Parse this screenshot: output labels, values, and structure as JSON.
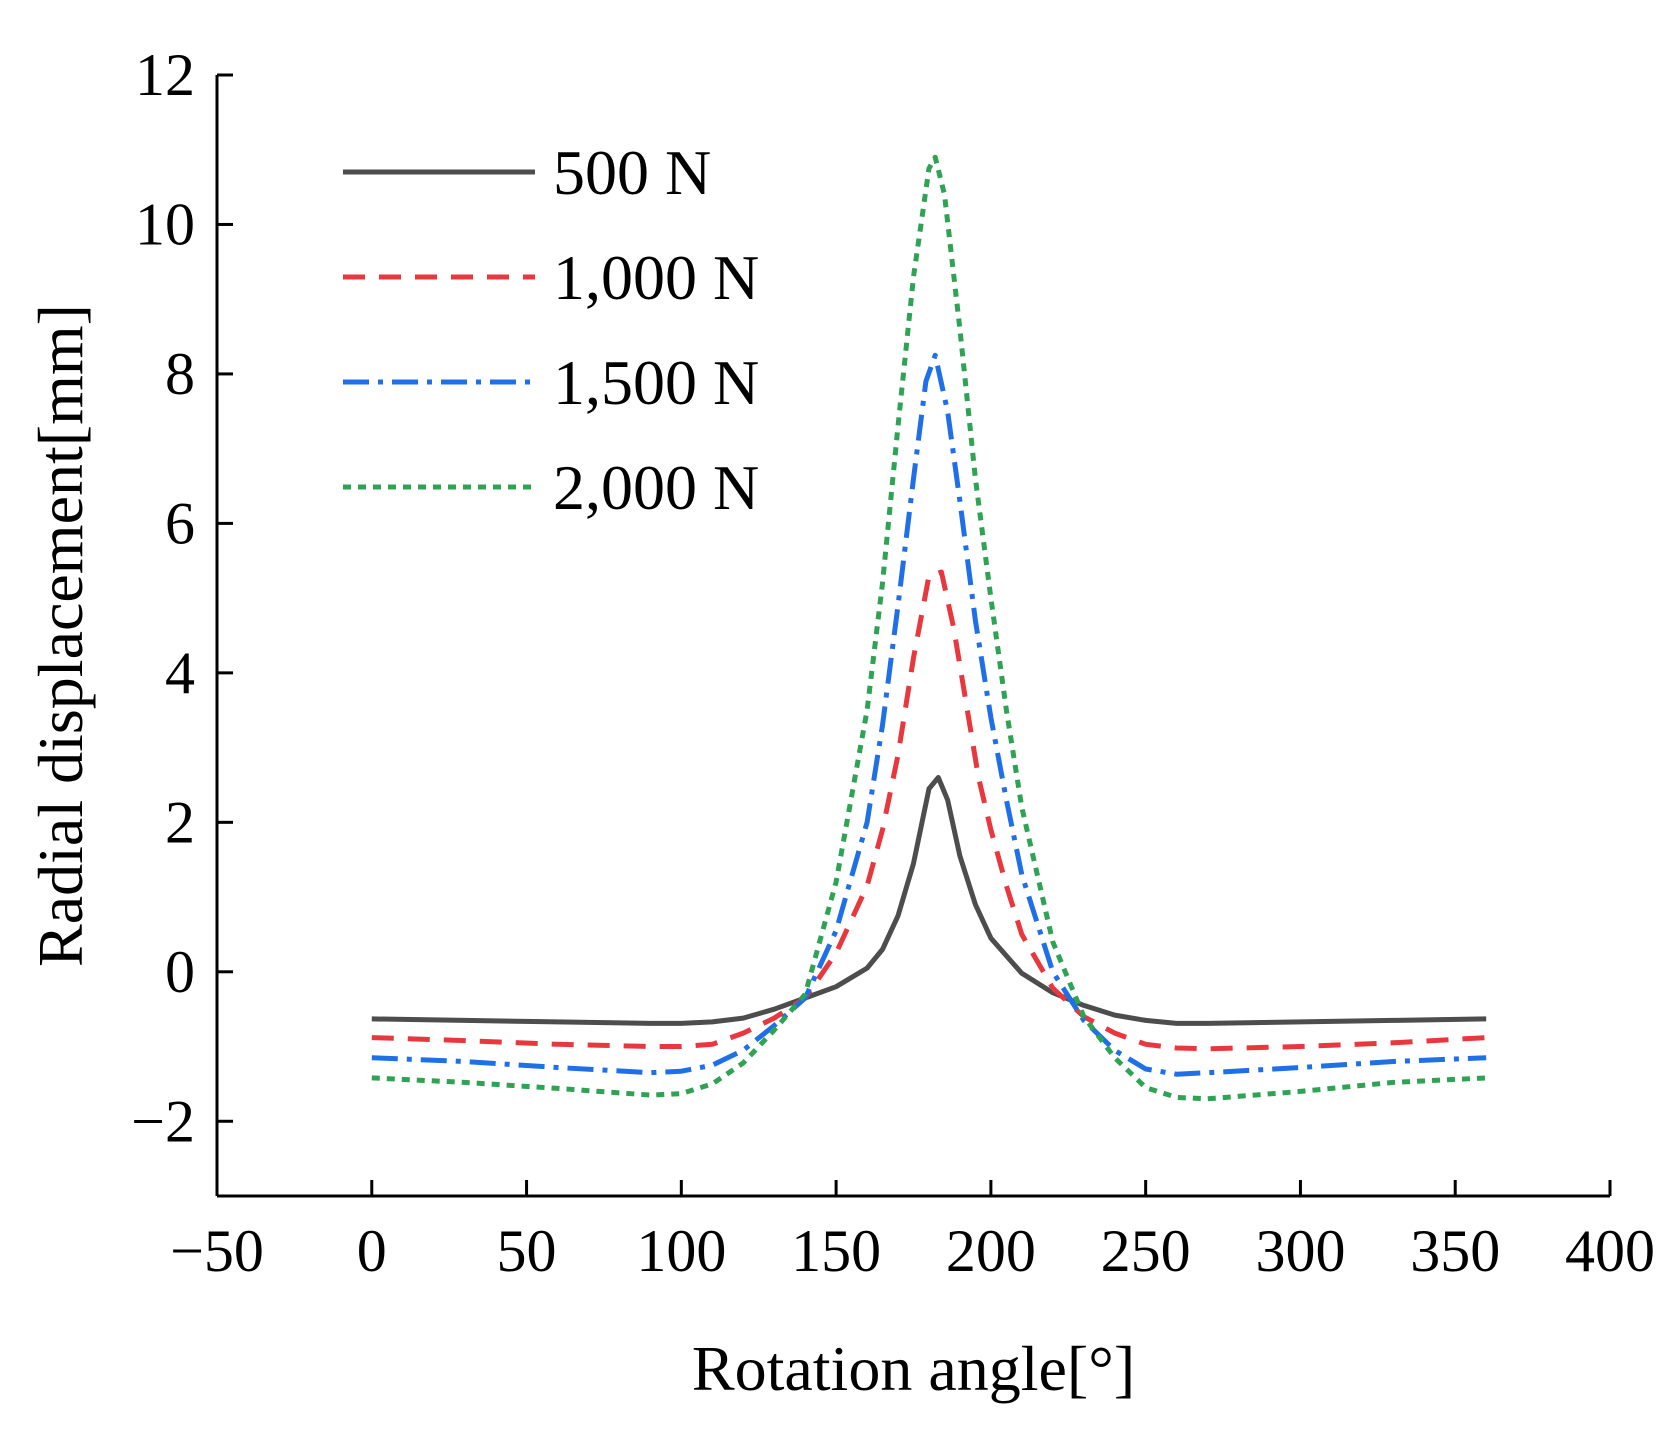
{
  "chart_data": {
    "type": "line",
    "xlabel": "Rotation angle[°]",
    "ylabel": "Radial displacement[mm]",
    "xlim": [
      -50,
      400
    ],
    "ylim": [
      -3,
      12
    ],
    "x_ticks": [
      -50,
      0,
      50,
      100,
      150,
      200,
      250,
      300,
      350,
      400
    ],
    "y_ticks": [
      -2,
      0,
      2,
      4,
      6,
      8,
      10,
      12
    ],
    "x_tick_labels": [
      "−50",
      "0",
      "50",
      "100",
      "150",
      "200",
      "250",
      "300",
      "350",
      "400"
    ],
    "y_tick_labels": [
      "−2",
      "0",
      "2",
      "4",
      "6",
      "8",
      "10",
      "12"
    ],
    "grid": false,
    "legend_position": "top-left",
    "series": [
      {
        "name": "500 N",
        "color": "#4d4d4d",
        "style": "solid",
        "x": [
          0,
          30,
          60,
          90,
          100,
          110,
          120,
          130,
          140,
          150,
          160,
          165,
          170,
          175,
          180,
          183,
          186,
          190,
          195,
          200,
          210,
          220,
          230,
          240,
          250,
          260,
          270,
          300,
          330,
          360
        ],
        "y": [
          -0.63,
          -0.65,
          -0.67,
          -0.69,
          -0.69,
          -0.67,
          -0.62,
          -0.5,
          -0.35,
          -0.2,
          0.05,
          0.3,
          0.75,
          1.45,
          2.45,
          2.6,
          2.3,
          1.55,
          0.9,
          0.45,
          -0.02,
          -0.28,
          -0.45,
          -0.58,
          -0.65,
          -0.69,
          -0.69,
          -0.67,
          -0.65,
          -0.63
        ]
      },
      {
        "name": "1,000 N",
        "color": "#e8383d",
        "style": "dashed",
        "x": [
          0,
          30,
          60,
          90,
          100,
          110,
          120,
          130,
          140,
          150,
          160,
          165,
          170,
          175,
          180,
          184,
          188,
          192,
          196,
          200,
          205,
          210,
          220,
          230,
          240,
          250,
          260,
          270,
          300,
          330,
          360
        ],
        "y": [
          -0.88,
          -0.92,
          -0.97,
          -1.0,
          -1.0,
          -0.97,
          -0.82,
          -0.62,
          -0.35,
          0.25,
          1.15,
          1.9,
          2.9,
          4.2,
          5.3,
          5.35,
          4.6,
          3.6,
          2.6,
          1.9,
          1.15,
          0.5,
          -0.22,
          -0.6,
          -0.82,
          -0.97,
          -1.02,
          -1.03,
          -1.0,
          -0.95,
          -0.88
        ]
      },
      {
        "name": "1,500 N",
        "color": "#1f6fe8",
        "style": "dashdot",
        "x": [
          0,
          30,
          60,
          90,
          100,
          110,
          120,
          130,
          140,
          150,
          160,
          165,
          170,
          175,
          179,
          182,
          186,
          190,
          195,
          200,
          205,
          210,
          220,
          230,
          240,
          250,
          260,
          270,
          300,
          330,
          360
        ],
        "y": [
          -1.15,
          -1.2,
          -1.28,
          -1.35,
          -1.33,
          -1.25,
          -1.05,
          -0.72,
          -0.35,
          0.55,
          2.0,
          3.3,
          4.9,
          6.6,
          7.9,
          8.25,
          7.5,
          6.3,
          4.7,
          3.4,
          2.3,
          1.3,
          0.0,
          -0.65,
          -1.05,
          -1.3,
          -1.37,
          -1.35,
          -1.28,
          -1.2,
          -1.15
        ]
      },
      {
        "name": "2,000 N",
        "color": "#2ea353",
        "style": "dotted",
        "x": [
          0,
          30,
          60,
          90,
          100,
          110,
          120,
          130,
          140,
          150,
          160,
          165,
          170,
          175,
          180,
          182,
          185,
          190,
          195,
          200,
          205,
          210,
          220,
          230,
          240,
          250,
          260,
          270,
          300,
          330,
          360
        ],
        "y": [
          -1.42,
          -1.48,
          -1.56,
          -1.65,
          -1.63,
          -1.5,
          -1.22,
          -0.78,
          -0.3,
          1.2,
          3.5,
          5.2,
          7.3,
          9.3,
          10.75,
          10.9,
          10.4,
          8.6,
          6.6,
          5.0,
          3.5,
          2.2,
          0.4,
          -0.6,
          -1.15,
          -1.55,
          -1.68,
          -1.7,
          -1.6,
          -1.48,
          -1.42
        ]
      }
    ]
  }
}
